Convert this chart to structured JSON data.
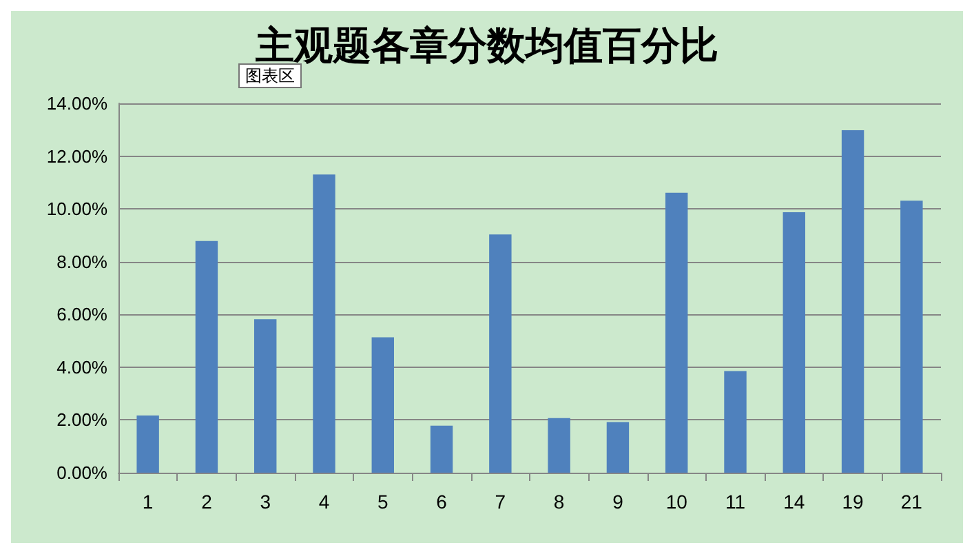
{
  "chart_data": {
    "type": "bar",
    "title": "主观题各章分数均值百分比",
    "annotations": [
      "图表区"
    ],
    "categories": [
      "1",
      "2",
      "3",
      "4",
      "5",
      "6",
      "7",
      "8",
      "9",
      "10",
      "11",
      "14",
      "19",
      "21"
    ],
    "values": [
      2.17,
      8.78,
      5.82,
      11.3,
      5.13,
      1.78,
      9.03,
      2.07,
      1.92,
      10.61,
      3.85,
      9.87,
      12.98,
      10.31
    ],
    "color": "#4f81bd",
    "ylim": [
      0,
      14
    ],
    "yticks": [
      {
        "value": 0,
        "label": "0.00%"
      },
      {
        "value": 2,
        "label": "2.00%"
      },
      {
        "value": 4,
        "label": "4.00%"
      },
      {
        "value": 6,
        "label": "6.00%"
      },
      {
        "value": 8,
        "label": "8.00%"
      },
      {
        "value": 10,
        "label": "10.00%"
      },
      {
        "value": 12,
        "label": "12.00%"
      },
      {
        "value": 14,
        "label": "14.00%"
      }
    ],
    "grid": "y"
  }
}
